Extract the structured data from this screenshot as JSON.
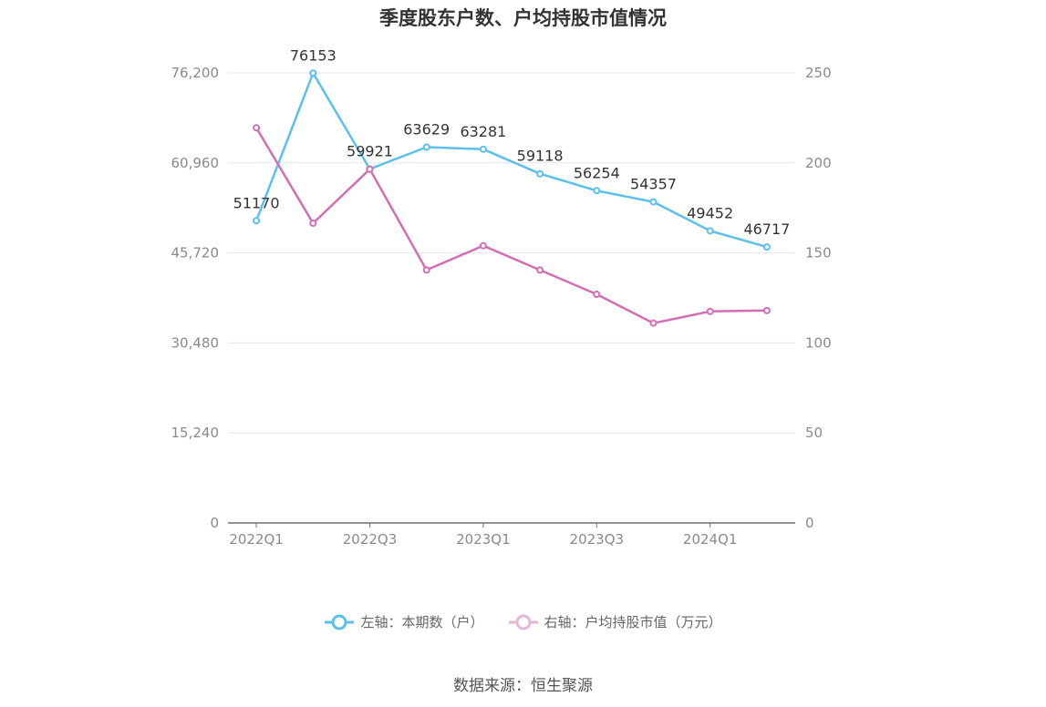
{
  "chart_data": {
    "type": "line",
    "title": "季度股东户数、户均持股市值情况",
    "categories": [
      "2022Q1",
      "2022Q2",
      "2022Q3",
      "2022Q4",
      "2023Q1",
      "2023Q2",
      "2023Q3",
      "2023Q4",
      "2024Q1",
      "2024Q2"
    ],
    "x_tick_labels": [
      "2022Q1",
      "2022Q3",
      "2023Q1",
      "2023Q3",
      "2024Q1"
    ],
    "left_axis": {
      "min": 0,
      "max": 76200,
      "ticks": [
        "0",
        "15,240",
        "30,480",
        "45,720",
        "60,960",
        "76,200"
      ]
    },
    "right_axis": {
      "min": 0,
      "max": 250,
      "ticks": [
        "0",
        "50",
        "100",
        "150",
        "200",
        "250"
      ]
    },
    "grid": true,
    "legend_position": "bottom",
    "series": [
      {
        "name": "左轴：本期数（户）",
        "axis": "left",
        "color": "#5bc0eb",
        "values": [
          51170,
          76153,
          59921,
          63629,
          63281,
          59118,
          56254,
          54357,
          49452,
          46717
        ],
        "labels": [
          "51170",
          "76153",
          "59921",
          "63629",
          "63281",
          "59118",
          "56254",
          "54357",
          "49452",
          "46717"
        ]
      },
      {
        "name": "右轴：户均持股市值（万元）",
        "axis": "right",
        "color": "#d46eb3",
        "values": [
          219.5,
          166.5,
          196.5,
          140.5,
          154,
          140.5,
          127,
          111,
          117.5,
          118
        ]
      }
    ]
  },
  "legend": {
    "left_label": "左轴：本期数（户）",
    "right_label": "右轴：户均持股市值（万元）"
  },
  "source": "数据来源：恒生聚源",
  "colors": {
    "series1": "#5bc0eb",
    "series2": "#d46eb3",
    "grid": "#e3e6ee",
    "axis": "#6e7079"
  }
}
